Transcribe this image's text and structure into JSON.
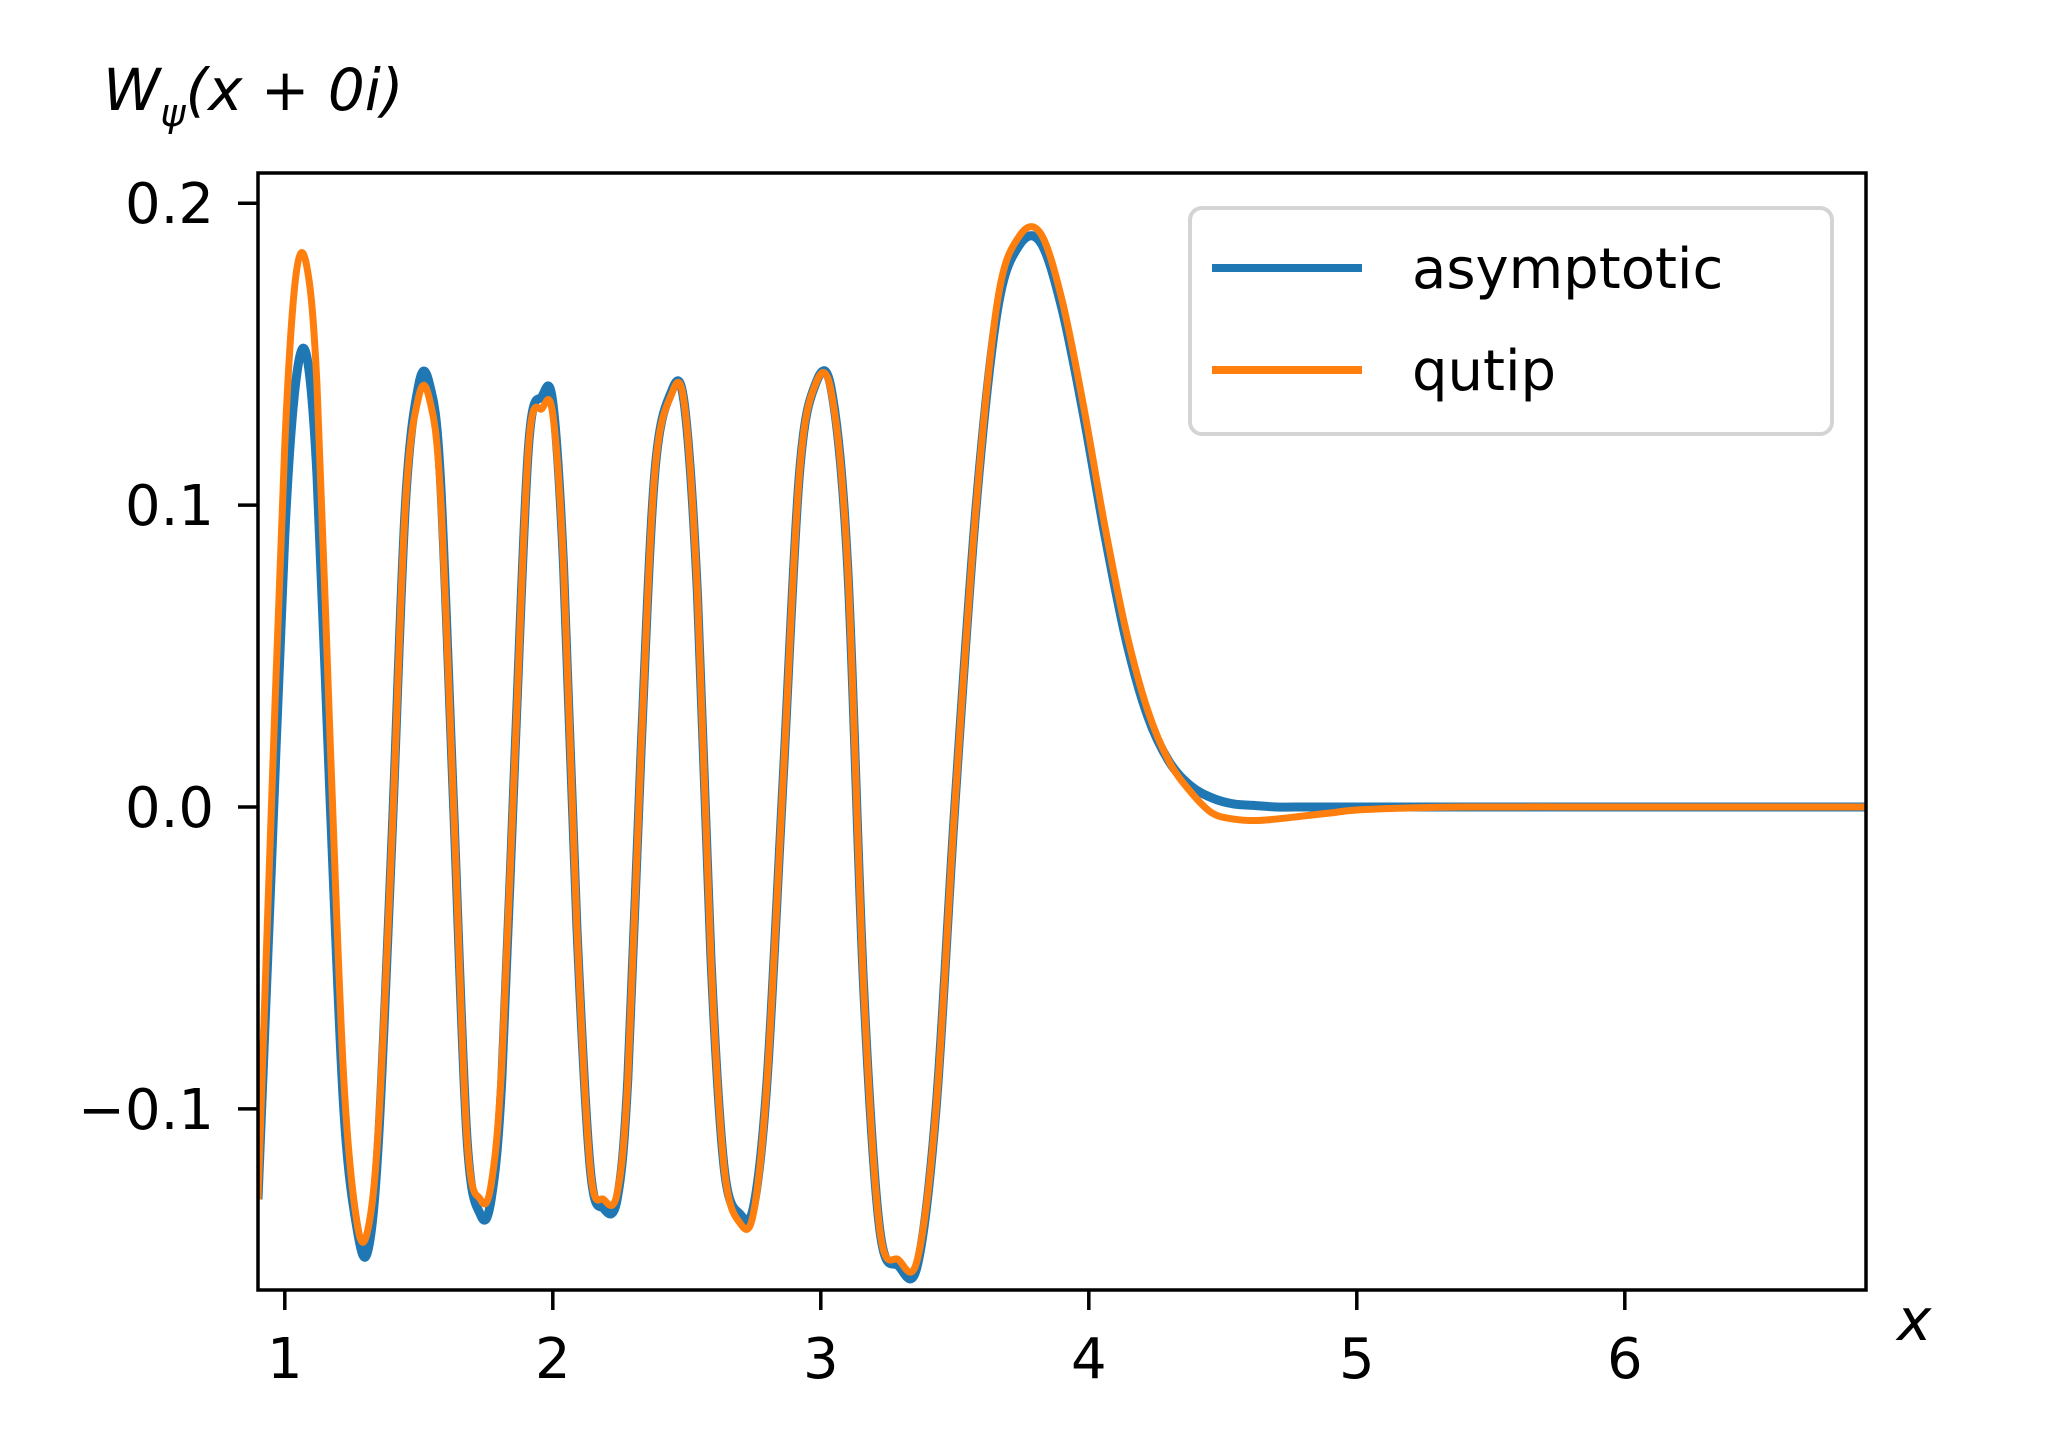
{
  "chart_data": {
    "type": "line",
    "ylabel": "W_ψ(x + 0i)",
    "ylabel_parts": {
      "main": "W",
      "sub": "ψ",
      "rest": "(x + 0i)"
    },
    "xlabel": "x",
    "xlim": [
      0.9,
      6.9
    ],
    "ylim": [
      -0.16,
      0.21
    ],
    "x_ticks": [
      1,
      2,
      3,
      4,
      5,
      6
    ],
    "x_tick_labels": [
      "1",
      "2",
      "3",
      "4",
      "5",
      "6"
    ],
    "y_ticks": [
      -0.1,
      0.0,
      0.1,
      0.2
    ],
    "y_tick_labels": [
      "−0.1",
      "0.0",
      "0.1",
      "0.2"
    ],
    "grid": false,
    "legend_position": "top-right",
    "series": [
      {
        "name": "asymptotic",
        "color": "#1f77b4",
        "x": [
          0.9,
          0.95,
          1.0,
          1.04,
          1.08,
          1.12,
          1.17,
          1.22,
          1.27,
          1.31,
          1.35,
          1.4,
          1.45,
          1.5,
          1.54,
          1.58,
          1.63,
          1.68,
          1.73,
          1.77,
          1.81,
          1.86,
          1.91,
          1.96,
          2.0,
          2.04,
          2.09,
          2.14,
          2.19,
          2.24,
          2.28,
          2.33,
          2.38,
          2.44,
          2.49,
          2.54,
          2.59,
          2.64,
          2.7,
          2.75,
          2.8,
          2.86,
          2.92,
          2.98,
          3.04,
          3.1,
          3.16,
          3.22,
          3.29,
          3.36,
          3.43,
          3.5,
          3.58,
          3.66,
          3.74,
          3.82,
          3.9,
          3.98,
          4.06,
          4.14,
          4.22,
          4.3,
          4.38,
          4.46,
          4.54,
          4.62,
          4.7,
          4.8,
          4.9,
          5.0,
          5.2,
          5.4,
          5.8,
          6.2,
          6.6,
          6.9
        ],
        "y": [
          -0.13,
          -0.02,
          0.09,
          0.14,
          0.15,
          0.11,
          0.0,
          -0.1,
          -0.14,
          -0.147,
          -0.11,
          -0.01,
          0.1,
          0.14,
          0.14,
          0.11,
          0.0,
          -0.11,
          -0.135,
          -0.13,
          -0.09,
          0.02,
          0.12,
          0.136,
          0.134,
          0.08,
          -0.04,
          -0.12,
          -0.133,
          -0.13,
          -0.09,
          0.02,
          0.11,
          0.137,
          0.134,
          0.07,
          -0.05,
          -0.12,
          -0.135,
          -0.132,
          -0.09,
          0.01,
          0.11,
          0.14,
          0.138,
          0.08,
          -0.06,
          -0.14,
          -0.152,
          -0.152,
          -0.1,
          0.0,
          0.1,
          0.165,
          0.186,
          0.187,
          0.165,
          0.13,
          0.09,
          0.055,
          0.03,
          0.015,
          0.007,
          0.003,
          0.001,
          0.0005,
          0.0,
          0.0,
          0.0,
          0.0,
          0.0,
          0.0,
          0.0,
          0.0,
          0.0,
          0.0
        ]
      },
      {
        "name": "qutip",
        "color": "#ff7f0e",
        "x": [
          0.9,
          0.95,
          1.0,
          1.04,
          1.08,
          1.12,
          1.17,
          1.22,
          1.27,
          1.31,
          1.35,
          1.4,
          1.45,
          1.5,
          1.54,
          1.58,
          1.63,
          1.68,
          1.73,
          1.77,
          1.81,
          1.86,
          1.91,
          1.96,
          2.0,
          2.04,
          2.09,
          2.14,
          2.19,
          2.24,
          2.28,
          2.33,
          2.38,
          2.44,
          2.49,
          2.54,
          2.59,
          2.64,
          2.7,
          2.75,
          2.8,
          2.86,
          2.92,
          2.98,
          3.04,
          3.1,
          3.16,
          3.22,
          3.29,
          3.36,
          3.43,
          3.5,
          3.58,
          3.66,
          3.74,
          3.82,
          3.9,
          3.98,
          4.06,
          4.14,
          4.22,
          4.3,
          4.38,
          4.46,
          4.54,
          4.62,
          4.7,
          4.8,
          4.9,
          5.0,
          5.2,
          5.4,
          5.8,
          6.2,
          6.6,
          6.9
        ],
        "y": [
          -0.13,
          0.0,
          0.12,
          0.175,
          0.18,
          0.14,
          0.02,
          -0.09,
          -0.138,
          -0.14,
          -0.105,
          -0.01,
          0.1,
          0.136,
          0.135,
          0.105,
          0.0,
          -0.11,
          -0.13,
          -0.125,
          -0.085,
          0.02,
          0.12,
          0.132,
          0.13,
          0.08,
          -0.04,
          -0.12,
          -0.13,
          -0.128,
          -0.09,
          0.02,
          0.11,
          0.136,
          0.134,
          0.07,
          -0.05,
          -0.12,
          -0.138,
          -0.134,
          -0.09,
          0.01,
          0.11,
          0.14,
          0.137,
          0.08,
          -0.06,
          -0.14,
          -0.15,
          -0.15,
          -0.1,
          0.0,
          0.1,
          0.168,
          0.189,
          0.19,
          0.168,
          0.133,
          0.093,
          0.058,
          0.032,
          0.015,
          0.005,
          -0.002,
          -0.004,
          -0.0045,
          -0.004,
          -0.003,
          -0.002,
          -0.001,
          -0.0003,
          0.0,
          0.0,
          0.0,
          0.0,
          0.0
        ]
      }
    ]
  }
}
